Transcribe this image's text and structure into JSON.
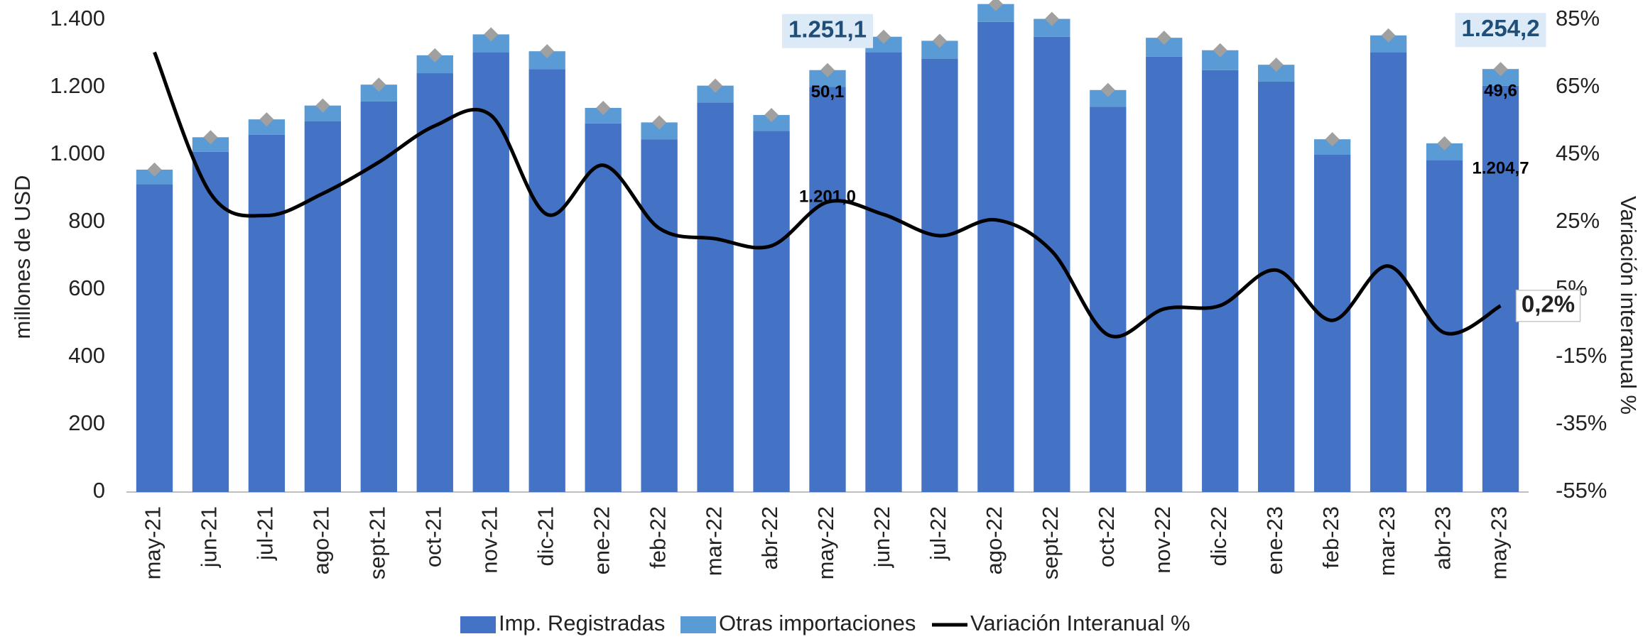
{
  "chart_data": {
    "type": "bar",
    "stacked": true,
    "ylabel": "millones de  USD",
    "y2label": "Variación  interanual %",
    "categories": [
      "may-21",
      "jun-21",
      "jul-21",
      "ago-21",
      "sept-21",
      "oct-21",
      "nov-21",
      "dic-21",
      "ene-22",
      "feb-22",
      "mar-22",
      "abr-22",
      "may-22",
      "jun-22",
      "jul-22",
      "ago-22",
      "sept-22",
      "oct-22",
      "nov-22",
      "dic-22",
      "ene-23",
      "feb-23",
      "mar-23",
      "abr-23",
      "may-23"
    ],
    "series": [
      {
        "name": "Imp. Registradas",
        "type": "bar",
        "color": "#4472c4",
        "values": [
          913,
          1009,
          1059,
          1099,
          1158,
          1242,
          1304,
          1254,
          1093,
          1046,
          1155,
          1071,
          1201.0,
          1304,
          1285,
          1394,
          1350,
          1142,
          1291,
          1251,
          1217,
          1000,
          1304,
          984,
          1204.7
        ],
        "value_labels": [
          null,
          null,
          null,
          null,
          null,
          null,
          null,
          null,
          null,
          null,
          null,
          null,
          "1.201,0",
          null,
          null,
          null,
          null,
          null,
          null,
          null,
          null,
          null,
          null,
          null,
          "1.204,7"
        ]
      },
      {
        "name": "Otras importaciones",
        "type": "bar",
        "color": "#5b9bd5",
        "values": [
          43,
          43,
          46,
          47,
          50,
          53,
          53,
          53,
          46,
          50,
          50,
          47,
          50.1,
          46,
          53,
          53,
          53,
          50,
          56,
          59,
          50,
          46,
          50,
          50,
          49.6
        ],
        "value_labels": [
          null,
          null,
          null,
          null,
          null,
          null,
          null,
          null,
          null,
          null,
          null,
          null,
          "50,1",
          null,
          null,
          null,
          null,
          null,
          null,
          null,
          null,
          null,
          null,
          null,
          "49,6"
        ]
      },
      {
        "name": "Variación Interanual %",
        "type": "line",
        "axis": "y2",
        "color": "#000000",
        "values": [
          75.4,
          33.5,
          27,
          33.5,
          42.8,
          53.6,
          56.7,
          27.3,
          41.9,
          23.2,
          20.1,
          18,
          31,
          27.3,
          21,
          25.7,
          16.4,
          -8.4,
          -0.7,
          0.3,
          10.8,
          -4.1,
          12,
          -7.8,
          0.2
        ],
        "value_labels": [
          null,
          null,
          null,
          null,
          null,
          null,
          null,
          null,
          null,
          null,
          null,
          null,
          null,
          null,
          null,
          null,
          null,
          null,
          null,
          null,
          null,
          null,
          null,
          null,
          "0,2%"
        ]
      }
    ],
    "annotations": [
      {
        "x": "may-22",
        "value": 1251.1,
        "label": "1.251,1"
      },
      {
        "x": "may-23",
        "value": 1254.2,
        "label": "1.254,2"
      }
    ],
    "total_marker_color": "#a0a0a0",
    "ylim": [
      0,
      1400
    ],
    "yticks": [
      0,
      200,
      400,
      600,
      800,
      {
        "value": 1000,
        "label": "1.000"
      },
      {
        "value": 1200,
        "label": "1.200"
      },
      {
        "value": 1400,
        "label": "1.400"
      }
    ],
    "y2lim": [
      -55,
      85
    ],
    "y2ticks": [
      {
        "value": -55,
        "label": "-55%"
      },
      {
        "value": -35,
        "label": "-35%"
      },
      {
        "value": -15,
        "label": "-15%"
      },
      {
        "value": 5,
        "label": "5%"
      },
      {
        "value": 25,
        "label": "25%"
      },
      {
        "value": 45,
        "label": "45%"
      },
      {
        "value": 65,
        "label": "65%"
      },
      {
        "value": 85,
        "label": "85%"
      }
    ],
    "legend": "bottom"
  }
}
